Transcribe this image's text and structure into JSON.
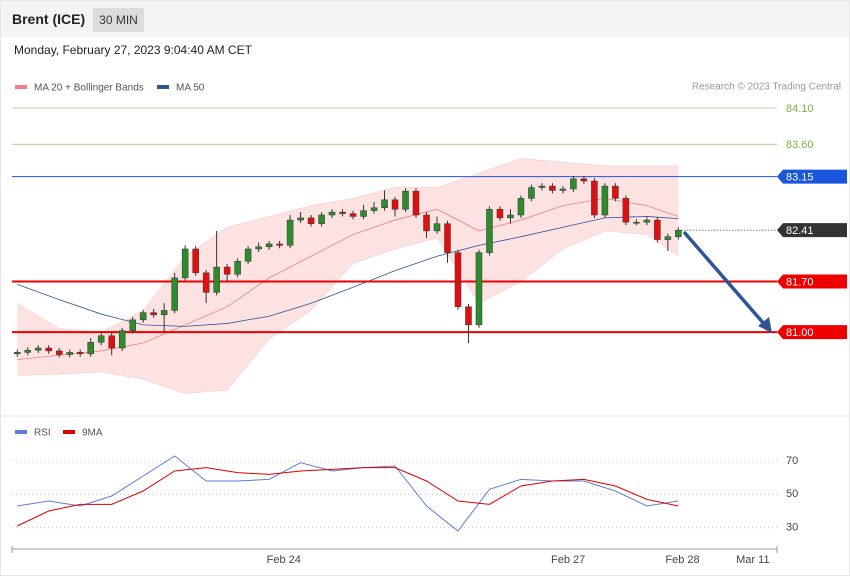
{
  "header": {
    "title": "Brent (ICE)",
    "timeframe": "30 MIN",
    "timestamp": "Monday, February 27, 2023 9:04:40 AM CET"
  },
  "chart_data": [
    {
      "type": "candlestick",
      "credit": "Research © 2023 Trading Central",
      "up_color": "#2e8b2e",
      "down_color": "#e01010",
      "x": [
        0,
        1,
        2,
        3,
        4,
        5,
        6,
        7,
        8,
        9,
        10,
        11,
        12,
        13,
        14,
        15,
        16,
        17,
        18,
        19,
        20,
        21,
        22,
        23,
        24,
        25,
        26,
        27,
        28,
        29,
        30,
        31,
        32,
        33,
        34,
        35,
        36,
        37,
        38,
        39,
        40,
        41,
        42,
        43,
        44,
        45,
        46,
        47,
        48,
        49,
        50,
        51,
        52,
        53,
        54,
        55,
        56,
        57,
        58,
        59,
        60,
        61,
        62,
        63
      ],
      "open": [
        80.7,
        80.72,
        80.75,
        80.78,
        80.74,
        80.69,
        80.72,
        80.7,
        80.86,
        80.95,
        80.78,
        81.02,
        81.17,
        81.27,
        81.24,
        81.3,
        81.75,
        82.15,
        81.82,
        81.55,
        81.9,
        81.8,
        81.98,
        82.15,
        82.18,
        82.22,
        82.2,
        82.55,
        82.58,
        82.5,
        82.62,
        82.66,
        82.64,
        82.6,
        82.68,
        82.72,
        82.83,
        82.7,
        82.95,
        82.62,
        82.4,
        82.5,
        82.1,
        81.35,
        81.1,
        82.1,
        82.7,
        82.58,
        82.62,
        82.85,
        83.0,
        83.02,
        82.96,
        82.98,
        83.12,
        83.09,
        82.62,
        83.02,
        82.85,
        82.52,
        82.52,
        82.55,
        82.28,
        82.32
      ],
      "high": [
        80.76,
        80.79,
        80.82,
        80.82,
        80.78,
        80.76,
        80.76,
        80.92,
        81.02,
        80.99,
        81.06,
        81.21,
        81.31,
        81.32,
        81.4,
        81.82,
        82.2,
        82.19,
        81.86,
        82.4,
        81.94,
        82.02,
        82.19,
        82.24,
        82.26,
        82.26,
        82.62,
        82.66,
        82.62,
        82.66,
        82.7,
        82.7,
        82.68,
        82.76,
        82.8,
        82.96,
        82.87,
        82.99,
        82.99,
        82.66,
        82.6,
        82.54,
        82.14,
        81.39,
        82.14,
        82.74,
        82.74,
        82.7,
        82.89,
        83.04,
        83.06,
        83.06,
        83.02,
        83.16,
        83.16,
        83.13,
        83.06,
        83.06,
        82.89,
        82.56,
        82.59,
        82.59,
        82.36,
        82.45
      ],
      "low": [
        80.66,
        80.68,
        80.71,
        80.7,
        80.65,
        80.65,
        80.66,
        80.66,
        80.82,
        80.68,
        80.74,
        80.98,
        81.13,
        81.2,
        81.0,
        81.26,
        81.71,
        81.78,
        81.4,
        81.51,
        81.7,
        81.76,
        81.94,
        82.11,
        82.14,
        82.16,
        82.16,
        82.51,
        82.46,
        82.46,
        82.58,
        82.6,
        82.56,
        82.56,
        82.64,
        82.68,
        82.6,
        82.66,
        82.58,
        82.3,
        82.36,
        81.96,
        81.31,
        80.85,
        81.06,
        82.06,
        82.54,
        82.5,
        82.58,
        82.81,
        82.96,
        82.92,
        82.92,
        82.94,
        83.05,
        82.58,
        82.58,
        82.81,
        82.48,
        82.48,
        82.48,
        82.24,
        82.12,
        82.28
      ],
      "close": [
        80.72,
        80.75,
        80.78,
        80.74,
        80.69,
        80.72,
        80.7,
        80.86,
        80.95,
        80.78,
        81.02,
        81.17,
        81.27,
        81.24,
        81.3,
        81.75,
        82.15,
        81.82,
        81.55,
        81.9,
        81.8,
        81.98,
        82.15,
        82.18,
        82.22,
        82.2,
        82.55,
        82.58,
        82.5,
        82.62,
        82.66,
        82.64,
        82.6,
        82.68,
        82.72,
        82.83,
        82.7,
        82.95,
        82.62,
        82.4,
        82.5,
        82.1,
        81.35,
        81.1,
        82.1,
        82.7,
        82.58,
        82.62,
        82.85,
        83.0,
        83.02,
        82.96,
        82.98,
        83.12,
        83.09,
        82.62,
        83.02,
        82.85,
        82.52,
        82.52,
        82.55,
        82.28,
        82.32,
        82.41
      ],
      "overlays": [
        {
          "name": "MA 20 + Bollinger Bands",
          "color": "#f08080",
          "band_color": "#fde2e2",
          "x": [
            0,
            4,
            8,
            12,
            16,
            20,
            24,
            28,
            32,
            36,
            40,
            44,
            48,
            52,
            56,
            60,
            63
          ],
          "values": [
            80.62,
            80.68,
            80.74,
            80.85,
            81.1,
            81.35,
            81.75,
            82.05,
            82.35,
            82.55,
            82.7,
            82.4,
            82.55,
            82.75,
            82.85,
            82.75,
            82.6
          ],
          "upper": [
            81.4,
            81.05,
            81.0,
            81.3,
            82.05,
            82.45,
            82.6,
            82.75,
            82.85,
            83.0,
            83.0,
            83.2,
            83.4,
            83.35,
            83.3,
            83.3,
            83.3
          ],
          "lower": [
            80.4,
            80.42,
            80.45,
            80.35,
            80.15,
            80.2,
            80.9,
            81.3,
            81.95,
            82.15,
            82.3,
            81.4,
            81.7,
            82.15,
            82.4,
            82.35,
            82.05
          ]
        },
        {
          "name": "MA 50",
          "color": "#2f5597",
          "x": [
            0,
            4,
            8,
            12,
            16,
            20,
            24,
            28,
            32,
            36,
            40,
            44,
            48,
            52,
            56,
            60,
            63
          ],
          "values": [
            81.66,
            81.45,
            81.25,
            81.1,
            81.08,
            81.12,
            81.22,
            81.4,
            81.62,
            81.85,
            82.05,
            82.2,
            82.32,
            82.45,
            82.58,
            82.6,
            82.57
          ]
        }
      ],
      "levels": [
        {
          "value": 84.1,
          "label": "84.10",
          "color": "#7cb342",
          "width": 0.6,
          "boxed": false
        },
        {
          "value": 83.6,
          "label": "83.60",
          "color": "#7cb342",
          "width": 0.6,
          "boxed": false
        },
        {
          "value": 83.15,
          "label": "83.15",
          "color": "#1a56db",
          "width": 1,
          "boxed": true
        },
        {
          "value": 82.41,
          "label": "82.41",
          "color": "#333333",
          "width": 0.8,
          "boxed": true,
          "dotted": true
        },
        {
          "value": 81.7,
          "label": "81.70",
          "color": "#ee0000",
          "width": 2,
          "boxed": true
        },
        {
          "value": 81.0,
          "label": "81.00",
          "color": "#ee0000",
          "width": 2,
          "boxed": true
        }
      ],
      "xlim": [
        -0.5,
        72.4
      ],
      "ylim": [
        79.84,
        84.75
      ]
    },
    {
      "type": "line",
      "series": [
        {
          "name": "RSI",
          "color": "#5b7fd6",
          "x": [
            0,
            3,
            6,
            9,
            12,
            15,
            18,
            21,
            24,
            27,
            30,
            33,
            36,
            39,
            42,
            45,
            48,
            51,
            54,
            57,
            60,
            63
          ],
          "values": [
            43,
            46,
            43,
            49,
            61,
            73,
            58,
            58,
            59,
            69,
            64,
            66,
            67,
            43,
            28,
            53,
            59,
            58,
            58,
            52,
            43,
            46
          ]
        },
        {
          "name": "9MA",
          "color": "#e00000",
          "x": [
            0,
            3,
            6,
            9,
            12,
            15,
            18,
            21,
            24,
            27,
            30,
            33,
            36,
            39,
            42,
            45,
            48,
            51,
            54,
            57,
            60,
            63
          ],
          "values": [
            31,
            40,
            44,
            44,
            52,
            64,
            66,
            63,
            62,
            64,
            65,
            66,
            66,
            58,
            46,
            44,
            55,
            58,
            59,
            55,
            47,
            43
          ]
        }
      ],
      "xlim": [
        -0.5,
        72.4
      ],
      "ylim": [
        19,
        82
      ],
      "yticks": [
        30,
        50,
        70
      ],
      "grid": true,
      "xticks": [
        {
          "value": 25.4,
          "label": "Feb 24"
        },
        {
          "value": 52.5,
          "label": "Feb 27"
        },
        {
          "value": 63.4,
          "label": "Feb 28"
        },
        {
          "value": 70.1,
          "label": "Mar 11"
        }
      ]
    }
  ]
}
